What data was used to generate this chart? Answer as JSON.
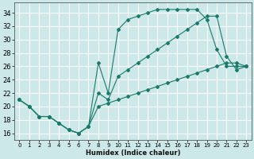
{
  "xlabel": "Humidex (Indice chaleur)",
  "bg_color": "#cce8e8",
  "grid_color": "#ffffff",
  "line_color": "#1a7a6a",
  "xlim": [
    -0.5,
    23.5
  ],
  "ylim": [
    15.0,
    35.5
  ],
  "xticks": [
    0,
    1,
    2,
    3,
    4,
    5,
    6,
    7,
    8,
    9,
    10,
    11,
    12,
    13,
    14,
    15,
    16,
    17,
    18,
    19,
    20,
    21,
    22,
    23
  ],
  "yticks": [
    16,
    18,
    20,
    22,
    24,
    26,
    28,
    30,
    32,
    34
  ],
  "line1_x": [
    0,
    1,
    2,
    3,
    4,
    5,
    6,
    7,
    8,
    9,
    10,
    11,
    12,
    13,
    14,
    15,
    16,
    17,
    18,
    19,
    20,
    21,
    22,
    23
  ],
  "line1_y": [
    21,
    20,
    18.5,
    18.5,
    17.5,
    16.5,
    16,
    17,
    26.5,
    22,
    31.5,
    33,
    33.5,
    34,
    34.5,
    34.5,
    34.5,
    34.5,
    34.5,
    33,
    28.5,
    26,
    26,
    26
  ],
  "line2_x": [
    0,
    1,
    2,
    3,
    4,
    5,
    6,
    7,
    8,
    9,
    10,
    11,
    12,
    13,
    14,
    15,
    16,
    17,
    18,
    19,
    20,
    21,
    22,
    23
  ],
  "line2_y": [
    21,
    20,
    18.5,
    18.5,
    17.5,
    16.5,
    16,
    17,
    22,
    21,
    24.5,
    25.5,
    26.5,
    27.5,
    28.5,
    29.5,
    30.5,
    31.5,
    32.5,
    33.5,
    33.5,
    27.5,
    25.5,
    26
  ],
  "line3_x": [
    0,
    1,
    2,
    3,
    4,
    5,
    6,
    7,
    8,
    9,
    10,
    11,
    12,
    13,
    14,
    15,
    16,
    17,
    18,
    19,
    20,
    21,
    22,
    23
  ],
  "line3_y": [
    21,
    20,
    18.5,
    18.5,
    17.5,
    16.5,
    16,
    17,
    20,
    20.5,
    21,
    21.5,
    22,
    22.5,
    23,
    23.5,
    24,
    24.5,
    25,
    25.5,
    26,
    26.5,
    26.5,
    26
  ]
}
